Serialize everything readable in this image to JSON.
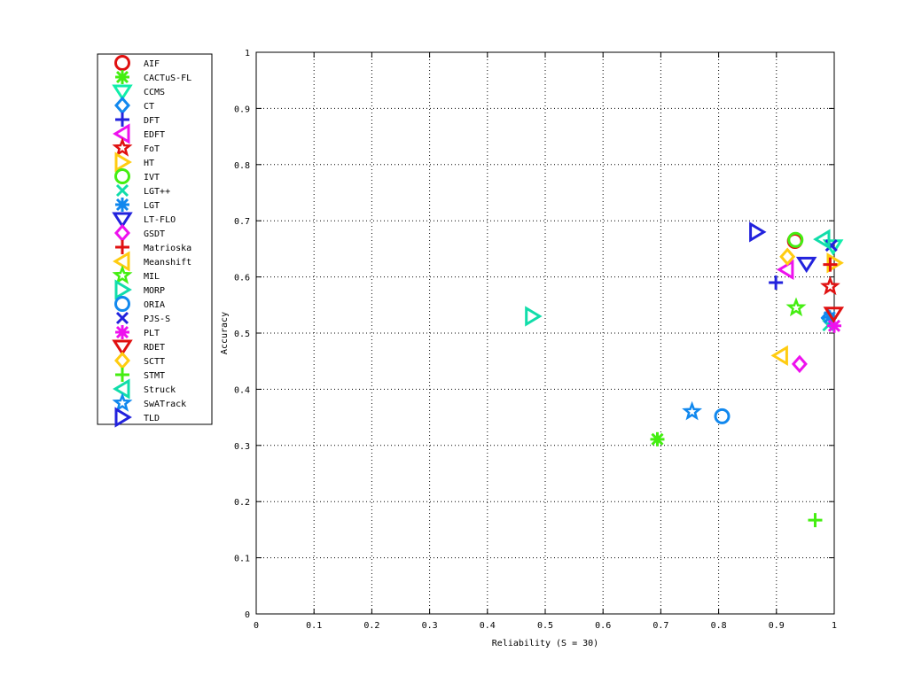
{
  "chart_data": {
    "type": "scatter",
    "title": "",
    "xlabel": "Reliability (S = 30)",
    "ylabel": "Accuracy",
    "xlim": [
      0,
      1
    ],
    "ylim": [
      0,
      1
    ],
    "xticks": [
      0,
      0.1,
      0.2,
      0.3,
      0.4,
      0.5,
      0.6,
      0.7,
      0.8,
      0.9,
      1
    ],
    "yticks": [
      0,
      0.1,
      0.2,
      0.3,
      0.4,
      0.5,
      0.6,
      0.7,
      0.8,
      0.9,
      1
    ],
    "xtick_labels": [
      "0",
      "0.1",
      "0.2",
      "0.3",
      "0.4",
      "0.5",
      "0.6",
      "0.7",
      "0.8",
      "0.9",
      "1"
    ],
    "ytick_labels": [
      "0",
      "0.1",
      "0.2",
      "0.3",
      "0.4",
      "0.5",
      "0.6",
      "0.7",
      "0.8",
      "0.9",
      "1"
    ],
    "grid": true,
    "legend_position": "outside-left",
    "series": [
      {
        "name": "AIF",
        "marker": "circle",
        "color": "#e01010",
        "x": 0.932,
        "y": 0.664
      },
      {
        "name": "CACTuS-FL",
        "marker": "asterisk",
        "color": "#44ee11",
        "x": 0.694,
        "y": 0.311
      },
      {
        "name": "CCMS",
        "marker": "triangle-down",
        "color": "#11eeaa",
        "x": 0.998,
        "y": 0.655
      },
      {
        "name": "CT",
        "marker": "diamond",
        "color": "#1188ee",
        "x": 0.99,
        "y": 0.527
      },
      {
        "name": "DFT",
        "marker": "plus",
        "color": "#2222dd",
        "x": 0.899,
        "y": 0.59
      },
      {
        "name": "EDFT",
        "marker": "triangle-left",
        "color": "#ee11ee",
        "x": 0.917,
        "y": 0.613
      },
      {
        "name": "FoT",
        "marker": "star",
        "color": "#e01010",
        "x": 0.993,
        "y": 0.583
      },
      {
        "name": "HT",
        "marker": "triangle-right",
        "color": "#ffcc11",
        "x": 1.0,
        "y": 0.625
      },
      {
        "name": "IVT",
        "marker": "circle",
        "color": "#44ee11",
        "x": 0.933,
        "y": 0.666
      },
      {
        "name": "LGT++",
        "marker": "x",
        "color": "#11ddaa",
        "x": 0.99,
        "y": 0.514
      },
      {
        "name": "LGT",
        "marker": "asterisk",
        "color": "#1188ee",
        "x": 0.992,
        "y": 0.528
      },
      {
        "name": "LT-FLO",
        "marker": "triangle-down",
        "color": "#2222dd",
        "x": 0.952,
        "y": 0.624
      },
      {
        "name": "GSDT",
        "marker": "diamond",
        "color": "#ee11ee",
        "x": 0.94,
        "y": 0.445
      },
      {
        "name": "Matrioska",
        "marker": "plus",
        "color": "#e01010",
        "x": 0.993,
        "y": 0.622
      },
      {
        "name": "Meanshift",
        "marker": "triangle-left",
        "color": "#ffcc11",
        "x": 0.907,
        "y": 0.46
      },
      {
        "name": "MIL",
        "marker": "star",
        "color": "#44ee11",
        "x": 0.934,
        "y": 0.545
      },
      {
        "name": "MORP",
        "marker": "triangle-right",
        "color": "#11ddaa",
        "x": 0.478,
        "y": 0.53
      },
      {
        "name": "ORIA",
        "marker": "circle",
        "color": "#1188ee",
        "x": 0.806,
        "y": 0.352
      },
      {
        "name": "PJS-S",
        "marker": "x",
        "color": "#2222dd",
        "x": 0.995,
        "y": 0.656
      },
      {
        "name": "PLT",
        "marker": "asterisk",
        "color": "#ee11ee",
        "x": 1.0,
        "y": 0.513
      },
      {
        "name": "RDET",
        "marker": "triangle-down",
        "color": "#e01010",
        "x": 0.999,
        "y": 0.535
      },
      {
        "name": "SCTT",
        "marker": "diamond",
        "color": "#ffcc11",
        "x": 0.919,
        "y": 0.636
      },
      {
        "name": "STMT",
        "marker": "plus",
        "color": "#44ee11",
        "x": 0.967,
        "y": 0.167
      },
      {
        "name": "Struck",
        "marker": "triangle-left",
        "color": "#11ddaa",
        "x": 0.98,
        "y": 0.667
      },
      {
        "name": "SwATrack",
        "marker": "star",
        "color": "#1188ee",
        "x": 0.754,
        "y": 0.36
      },
      {
        "name": "TLD",
        "marker": "triangle-right",
        "color": "#2222dd",
        "x": 0.866,
        "y": 0.68
      }
    ]
  }
}
